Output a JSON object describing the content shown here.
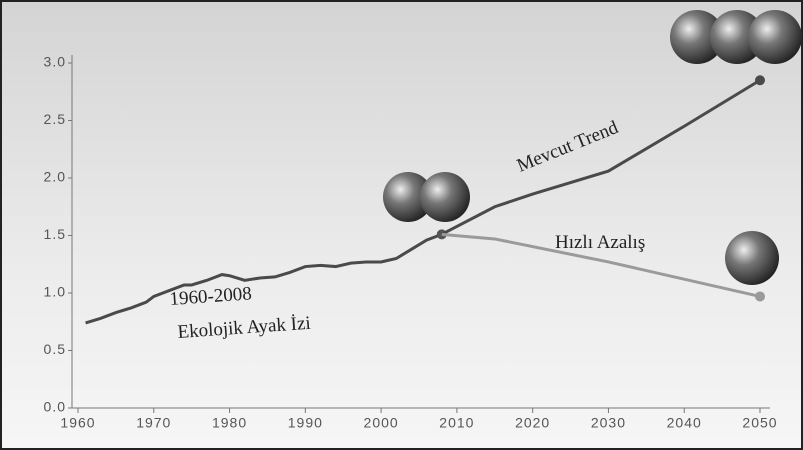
{
  "chart_data": {
    "type": "line",
    "annotations": [
      "Mevcut Trend",
      "Hızlı Azalış",
      "1960-2008",
      "Ekolojik Ayak İzi"
    ],
    "xlim": [
      1960,
      2050
    ],
    "xticks": [
      1960,
      1970,
      1980,
      1990,
      2000,
      2010,
      2020,
      2030,
      2040,
      2050
    ],
    "ylim": [
      0,
      3
    ],
    "yticks": [
      {
        "value": 0,
        "label": "0.0"
      },
      0.5,
      {
        "value": 1,
        "label": "1.0"
      },
      1.5,
      {
        "value": 2,
        "label": "2.0"
      },
      2.5,
      {
        "value": 3,
        "label": "3.0"
      }
    ],
    "series": [
      {
        "color": "#4a4a4a",
        "x": [
          1961,
          1963,
          1965,
          1967,
          1969,
          1970,
          1972,
          1974,
          1975,
          1977,
          1979,
          1980,
          1982,
          1984,
          1986,
          1988,
          1990,
          1992,
          1994,
          1996,
          1998,
          2000,
          2002,
          2004,
          2006,
          2008
        ],
        "values": [
          0.74,
          0.78,
          0.83,
          0.87,
          0.92,
          0.97,
          1.02,
          1.07,
          1.07,
          1.11,
          1.16,
          1.15,
          1.11,
          1.13,
          1.14,
          1.18,
          1.23,
          1.24,
          1.23,
          1.26,
          1.27,
          1.27,
          1.3,
          1.38,
          1.46,
          1.51
        ]
      },
      {
        "color": "#4a4a4a",
        "x": [
          2008,
          2015,
          2020,
          2030,
          2040,
          2050
        ],
        "values": [
          1.51,
          1.75,
          1.86,
          2.06,
          2.45,
          2.85
        ]
      },
      {
        "color": "#9a9a9a",
        "x": [
          2008,
          2015,
          2030,
          2050
        ],
        "values": [
          1.51,
          1.47,
          1.27,
          0.97
        ]
      }
    ]
  }
}
